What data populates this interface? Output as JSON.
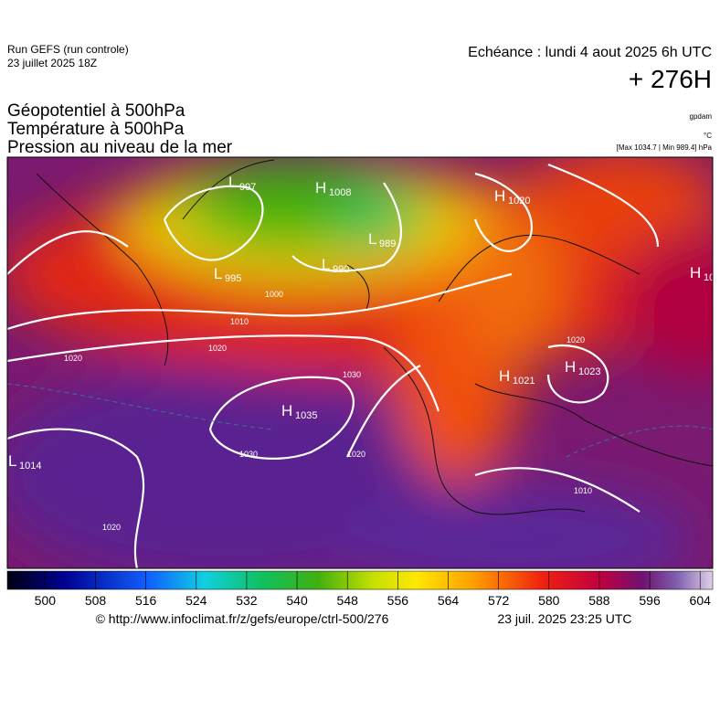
{
  "header": {
    "run": "Run GEFS (run controle)",
    "run_date": "23 juillet 2025 18Z",
    "valid": "Echéance : lundi 4 aout 2025 6h UTC",
    "lead": "+ 276H",
    "titles": [
      "Géopotentiel à 500hPa",
      "Température à 500hPa",
      "Pression au niveau de la mer"
    ],
    "units": [
      "gpdam",
      "°C"
    ],
    "extremes": "[Max 1034.7 | Min 989.4] hPa"
  },
  "centers": [
    {
      "letter": "L",
      "value": "997"
    },
    {
      "letter": "H",
      "value": "1008"
    },
    {
      "letter": "L",
      "value": "989"
    },
    {
      "letter": "L",
      "value": "995"
    },
    {
      "letter": "L",
      "value": "990"
    },
    {
      "letter": "H",
      "value": "1020"
    },
    {
      "letter": "H",
      "value": "10"
    },
    {
      "letter": "H",
      "value": "1035"
    },
    {
      "letter": "H",
      "value": "1021"
    },
    {
      "letter": "H",
      "value": "1023"
    },
    {
      "letter": "L",
      "value": "1014"
    }
  ],
  "isobar_labels": [
    "1020",
    "1020",
    "1010",
    "1000",
    "1030",
    "1030",
    "1020",
    "1020",
    "1020",
    "1010"
  ],
  "colorbar": {
    "range": [
      494,
      606
    ],
    "ticks": [
      500,
      508,
      516,
      524,
      532,
      540,
      548,
      556,
      564,
      572,
      580,
      588,
      596,
      604
    ]
  },
  "footer": {
    "source": "© http://www.infoclimat.fr/z/gefs/europe/ctrl-500/276",
    "generated": "23 juil. 2025 23:25 UTC"
  }
}
